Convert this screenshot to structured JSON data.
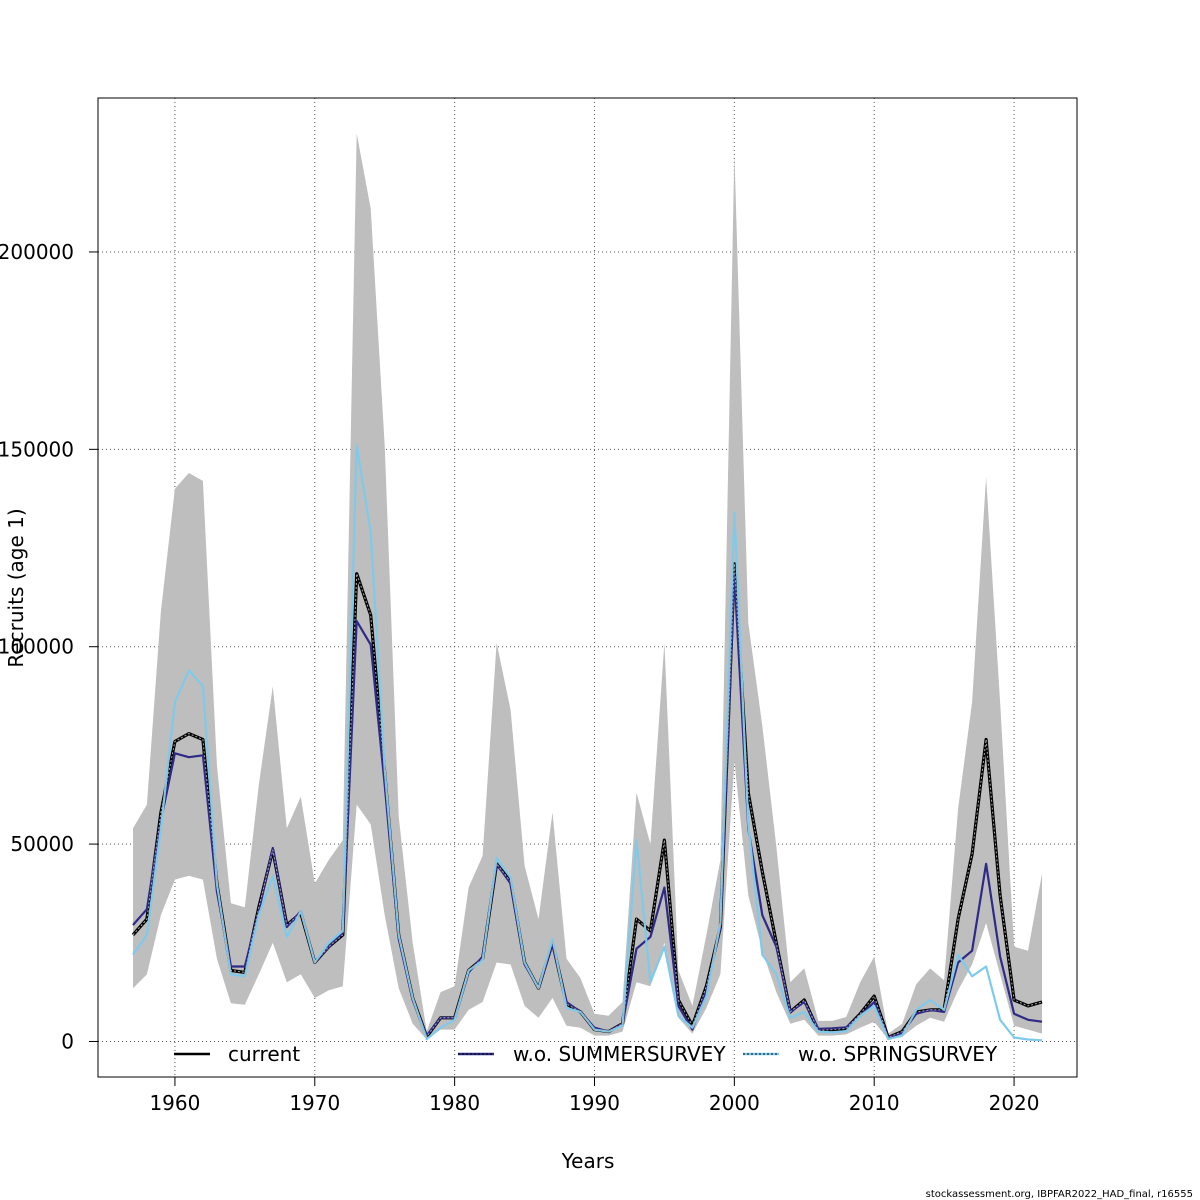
{
  "chart_data": {
    "type": "line",
    "xlabel": "Years",
    "ylabel": "Recruits (age 1)",
    "xlim": [
      1954.5,
      2024.5
    ],
    "ylim": [
      -9000,
      239000
    ],
    "x_ticks": [
      1960,
      1970,
      1980,
      1990,
      2000,
      2010,
      2020
    ],
    "x_tick_labels": [
      "1960",
      "1970",
      "1980",
      "1990",
      "2000",
      "2010",
      "2020"
    ],
    "y_ticks": [
      0,
      50000,
      100000,
      150000,
      200000
    ],
    "y_tick_labels": [
      "0",
      "50000",
      "100000",
      "150000",
      "200000"
    ],
    "grid": true,
    "legend_position": "bottom",
    "footer": "stockassessment.org, IBPFAR2022_HAD_final, r16555",
    "x": [
      1957,
      1958,
      1959,
      1960,
      1961,
      1962,
      1963,
      1964,
      1965,
      1966,
      1967,
      1968,
      1969,
      1970,
      1971,
      1972,
      1973,
      1974,
      1975,
      1976,
      1977,
      1978,
      1979,
      1980,
      1981,
      1982,
      1983,
      1984,
      1985,
      1986,
      1987,
      1988,
      1989,
      1990,
      1991,
      1992,
      1993,
      1994,
      1995,
      1996,
      1997,
      1998,
      1999,
      2000,
      2001,
      2002,
      2003,
      2004,
      2005,
      2006,
      2007,
      2008,
      2009,
      2010,
      2011,
      2012,
      2013,
      2014,
      2015,
      2016,
      2017,
      2018,
      2019,
      2020,
      2021,
      2022
    ],
    "confidence_band": {
      "color": "#bebebe",
      "lower": [
        13500,
        17000,
        32000,
        41000,
        42000,
        41000,
        21000,
        9700,
        9300,
        17000,
        25000,
        15000,
        17000,
        11000,
        13000,
        14000,
        60000,
        55000,
        32000,
        13500,
        4500,
        500,
        3000,
        3000,
        8000,
        10000,
        20000,
        19500,
        9000,
        6000,
        11000,
        4000,
        3500,
        1500,
        1500,
        2500,
        15000,
        14000,
        25000,
        6000,
        2000,
        8500,
        17000,
        71000,
        37000,
        23000,
        12500,
        4500,
        5500,
        1500,
        1500,
        1800,
        3500,
        5000,
        500,
        1200,
        4000,
        6000,
        5000,
        13000,
        19500,
        30000,
        17000,
        4000,
        3000,
        2000
      ],
      "upper": [
        54000,
        60000,
        109000,
        140000,
        144000,
        142000,
        70000,
        35000,
        34000,
        65000,
        90000,
        54000,
        62000,
        40000,
        46000,
        51000,
        230000,
        211000,
        151000,
        57000,
        25000,
        2600,
        12500,
        14000,
        39000,
        47000,
        101000,
        84000,
        44500,
        31000,
        58000,
        21000,
        16000,
        7000,
        6500,
        10000,
        63000,
        50000,
        101000,
        18000,
        9000,
        27000,
        46000,
        225000,
        106000,
        80000,
        49500,
        15000,
        18500,
        5200,
        5200,
        6200,
        15000,
        21500,
        2000,
        4500,
        14500,
        18500,
        15500,
        59000,
        86000,
        143000,
        86000,
        24000,
        23000,
        42500
      ]
    },
    "series": [
      {
        "name": "current",
        "color": "#000000",
        "values": [
          27000,
          31000,
          58000,
          76000,
          78000,
          76500,
          40000,
          18000,
          17500,
          34000,
          48500,
          29500,
          32500,
          20000,
          24000,
          27000,
          118500,
          108000,
          68000,
          27000,
          11000,
          1200,
          6000,
          6000,
          18000,
          21000,
          45000,
          40500,
          20000,
          13500,
          25000,
          9500,
          7500,
          3000,
          2500,
          4500,
          31000,
          28000,
          51000,
          10500,
          4000,
          14000,
          29000,
          121000,
          63000,
          43000,
          25000,
          7500,
          10500,
          2800,
          3000,
          3300,
          7000,
          11500,
          1000,
          2500,
          7500,
          8000,
          8000,
          31000,
          47500,
          76500,
          37000,
          10500,
          9000,
          10000
        ]
      },
      {
        "name": "w.o. SUMMERSURVEY",
        "color": "#2e2a87",
        "values": [
          29500,
          33500,
          56000,
          73000,
          72000,
          72500,
          38000,
          19000,
          19000,
          33000,
          49000,
          29000,
          33000,
          20000,
          24000,
          27500,
          106500,
          100500,
          65000,
          26000,
          10500,
          1500,
          6000,
          6000,
          17500,
          21500,
          45000,
          40000,
          19500,
          13500,
          24500,
          10000,
          7500,
          3500,
          2500,
          4500,
          23500,
          26500,
          39000,
          9000,
          3000,
          13000,
          29000,
          118000,
          54000,
          32000,
          24000,
          7500,
          10000,
          3200,
          3300,
          3600,
          6500,
          10000,
          1000,
          2200,
          7000,
          8000,
          7500,
          20000,
          23000,
          45000,
          21500,
          7000,
          5500,
          5000
        ]
      },
      {
        "name": "w.o. SPRINGSURVEY",
        "color": "#7fcaea",
        "values": [
          22000,
          27000,
          54000,
          86000,
          94000,
          90000,
          40000,
          17000,
          16500,
          32000,
          42000,
          26500,
          33000,
          20000,
          25000,
          28000,
          151000,
          129000,
          69000,
          27000,
          11000,
          600,
          3500,
          5500,
          18000,
          20500,
          46500,
          41500,
          20000,
          13500,
          26000,
          8500,
          7500,
          3000,
          2500,
          4000,
          51000,
          15000,
          24000,
          6500,
          3500,
          11500,
          30000,
          134000,
          55000,
          22000,
          17000,
          6000,
          7500,
          2500,
          2300,
          2600,
          6500,
          9000,
          600,
          1500,
          8000,
          10500,
          8000,
          22000,
          16500,
          19000,
          5500,
          1000,
          500,
          300
        ]
      }
    ]
  }
}
